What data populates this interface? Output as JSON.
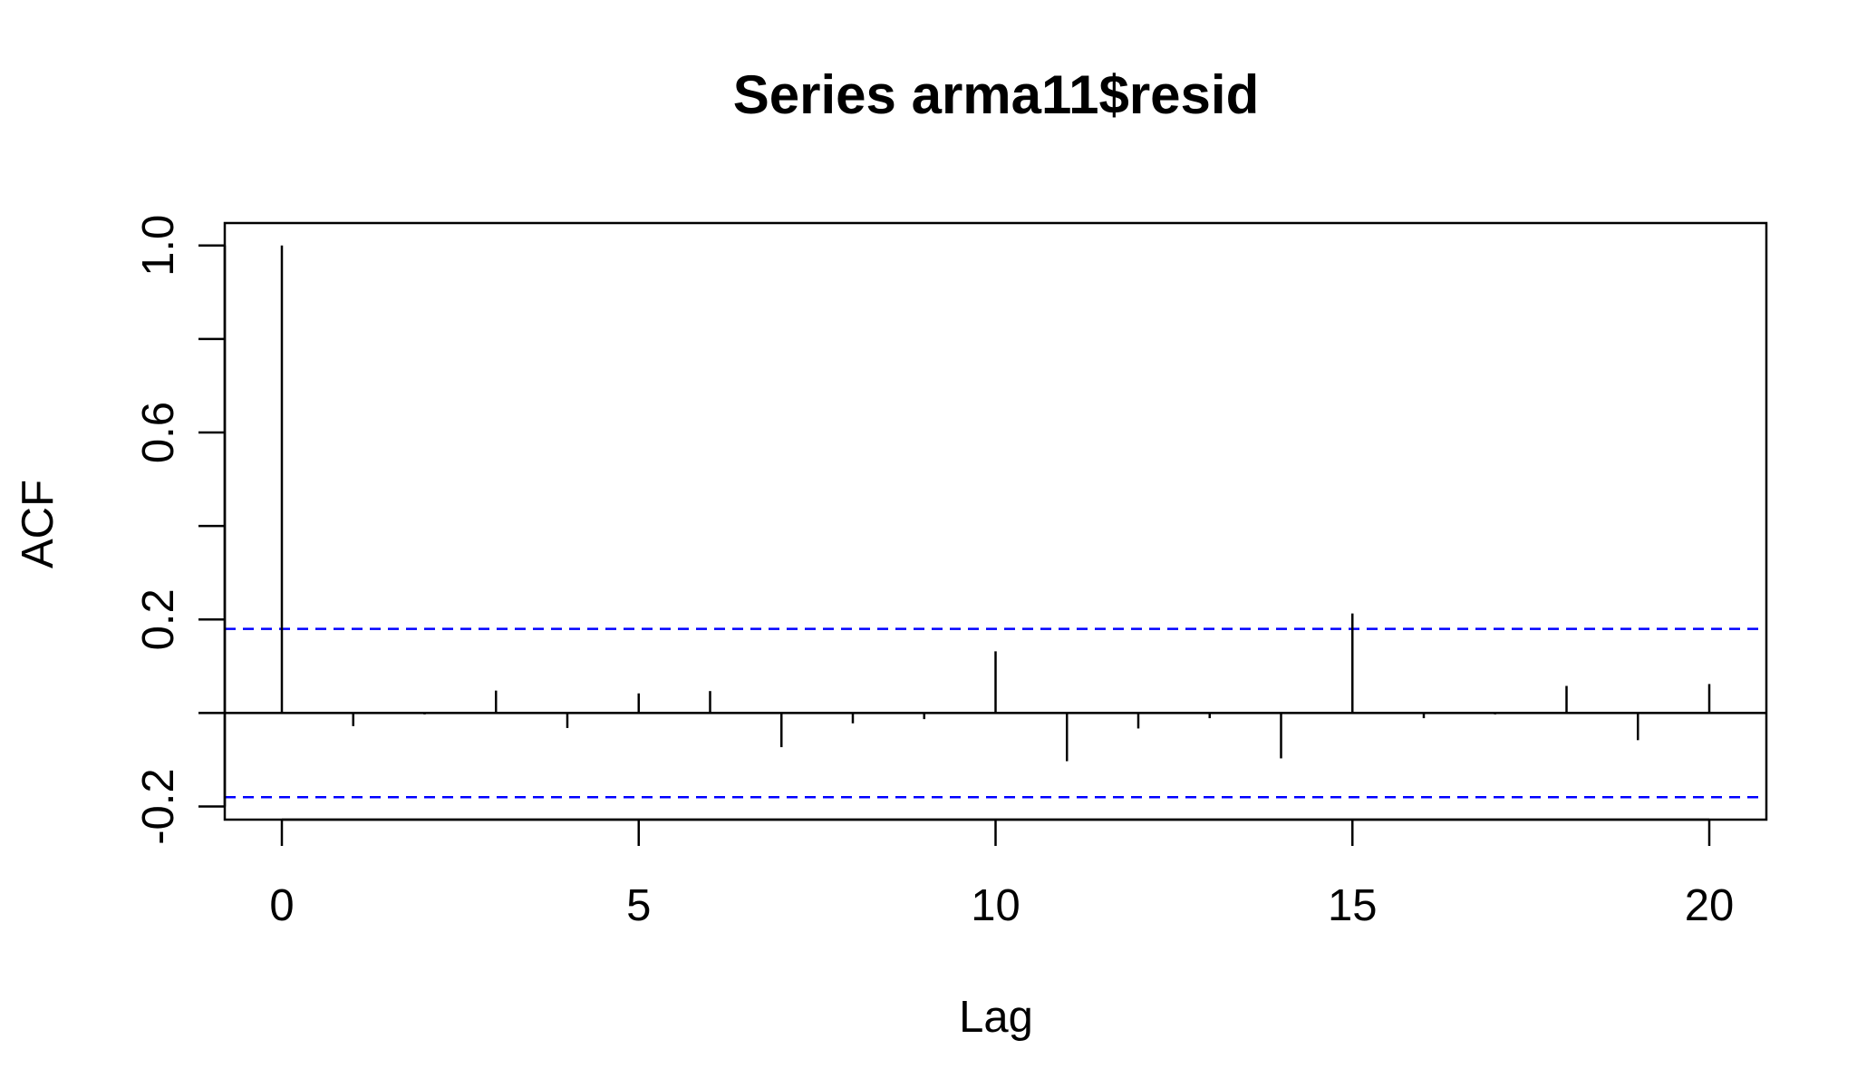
{
  "chart_data": {
    "type": "bar",
    "title": "Series  arma11$resid",
    "xlabel": "Lag",
    "ylabel": "ACF",
    "x_ticks": [
      "0",
      "5",
      "10",
      "15",
      "20"
    ],
    "y_ticks": [
      "-0.2",
      "0.2",
      "0.6",
      "1.0"
    ],
    "xlim": [
      -0.8,
      20.8
    ],
    "ylim": [
      -0.228,
      1.048
    ],
    "series": [
      {
        "x": [
          0,
          1,
          2,
          3,
          4,
          5,
          6,
          7,
          8,
          9,
          10,
          11,
          12,
          13,
          14,
          15,
          16,
          17,
          18,
          19,
          20
        ],
        "values": [
          1.0,
          -0.028,
          -0.003,
          0.048,
          -0.032,
          0.042,
          0.047,
          -0.073,
          -0.022,
          -0.013,
          0.132,
          -0.103,
          -0.033,
          -0.011,
          -0.097,
          0.213,
          -0.011,
          -0.003,
          0.058,
          -0.058,
          0.062
        ]
      }
    ],
    "confidence_bounds": [
      0.18,
      -0.18
    ],
    "colors": {
      "bars": "#000000",
      "bounds": "#0000ff",
      "axes": "#000000",
      "background": "#ffffff"
    },
    "grid": false,
    "legend": "none"
  }
}
